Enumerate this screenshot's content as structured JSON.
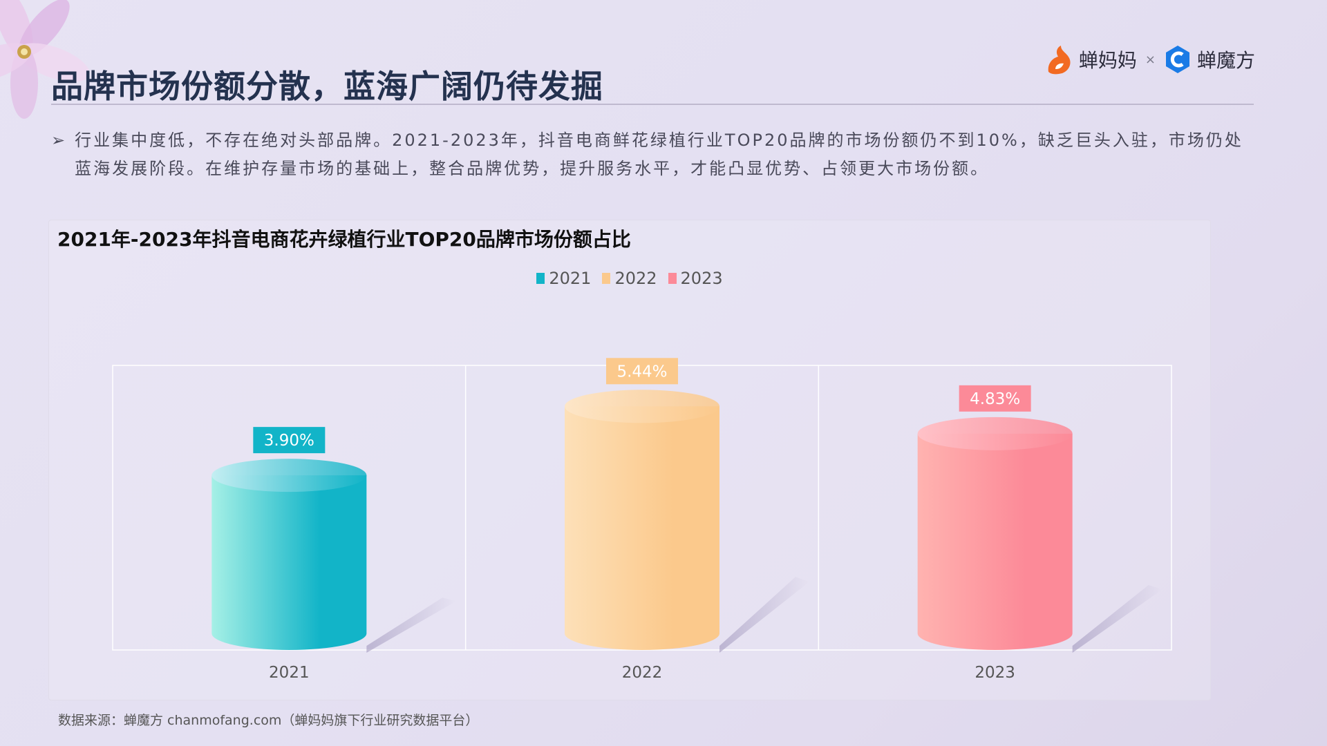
{
  "header": {
    "title": "品牌市场份额分散，蓝海广阔仍待发掘",
    "brand_left": "蝉妈妈",
    "brand_sep": "×",
    "brand_right": "蝉魔方"
  },
  "bullet": {
    "text": "行业集中度低，不存在绝对头部品牌。2021-2023年，抖音电商鲜花绿植行业TOP20品牌的市场份额仍不到10%，缺乏巨头入驻，市场仍处蓝海发展阶段。在维护存量市场的基础上，整合品牌优势，提升服务水平，才能凸显优势、占领更大市场份额。"
  },
  "chart_data": {
    "type": "bar",
    "title": "2021年-2023年抖音电商花卉绿植行业TOP20品牌市场份额占比",
    "categories": [
      "2021",
      "2022",
      "2023"
    ],
    "values": [
      3.9,
      5.44,
      4.83
    ],
    "value_labels": [
      "3.90%",
      "5.44%",
      "4.83%"
    ],
    "legend": [
      "2021",
      "2022",
      "2023"
    ],
    "legend_position": "top-center",
    "colors": [
      "#12b4c8",
      "#fbc98c",
      "#fc8a98"
    ],
    "ylim": [
      0,
      6.2
    ],
    "grid": true,
    "bar_style": "3d-cylinder",
    "xlabel": "",
    "ylabel": ""
  },
  "footer": {
    "source": "数据来源：蝉魔方   chanmofang.com（蝉妈妈旗下行业研究数据平台）"
  }
}
